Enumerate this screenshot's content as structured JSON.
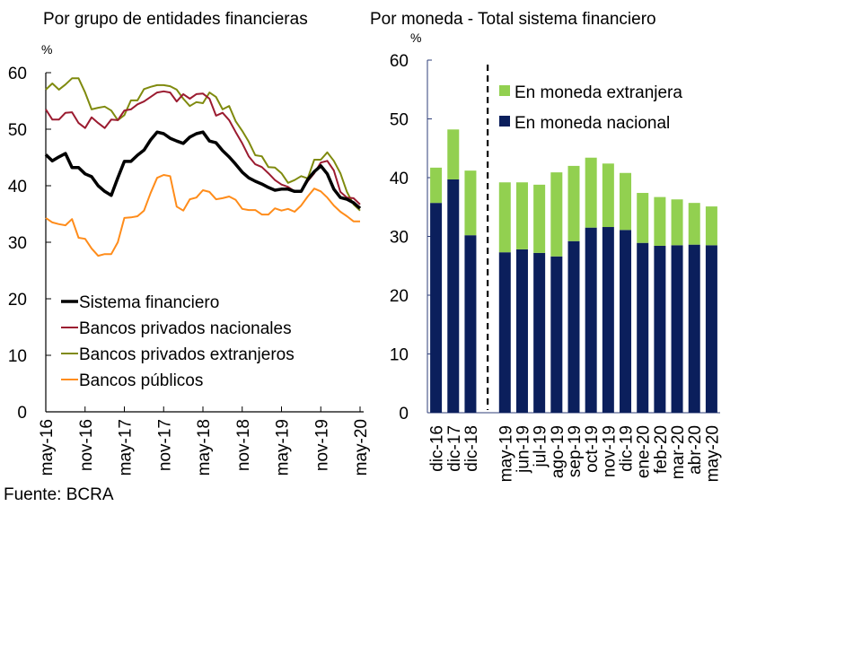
{
  "chart_data": [
    {
      "type": "line",
      "title": "Por grupo de entidades financieras",
      "ylabel": "%",
      "ylim": [
        0,
        60
      ],
      "yticks": [
        0,
        10,
        20,
        30,
        40,
        50,
        60
      ],
      "xtick_labels": [
        "may-16",
        "nov-16",
        "may-17",
        "nov-17",
        "may-18",
        "nov-18",
        "may-19",
        "nov-19",
        "may-20"
      ],
      "x_start": "may-16",
      "x_end": "may-20",
      "frequency": "monthly",
      "legend_position": "bottom-left",
      "series": [
        {
          "name": "Sistema financiero",
          "color": "#000000",
          "values": [
            45.5,
            44.4,
            45.1,
            45.7,
            43.2,
            43.2,
            42.1,
            41.6,
            40.0,
            39.0,
            38.3,
            41.4,
            44.3,
            44.3,
            45.4,
            46.3,
            48.1,
            49.5,
            49.2,
            48.4,
            47.9,
            47.5,
            48.6,
            49.2,
            49.5,
            47.9,
            47.6,
            46.2,
            45.1,
            43.8,
            42.4,
            41.4,
            40.8,
            40.3,
            39.7,
            39.2,
            39.4,
            39.4,
            39.0,
            39.0,
            41.1,
            42.5,
            43.5,
            42.1,
            39.4,
            37.9,
            37.6,
            37.0,
            36.0
          ]
        },
        {
          "name": "Bancos privados nacionales",
          "color": "#9b1b30",
          "values": [
            53.5,
            51.7,
            51.7,
            52.9,
            53.0,
            51.1,
            50.2,
            52.1,
            51.1,
            50.2,
            51.7,
            51.6,
            53.3,
            53.5,
            54.4,
            54.9,
            55.7,
            56.5,
            56.7,
            56.5,
            54.9,
            56.2,
            55.4,
            56.2,
            56.3,
            55.4,
            52.4,
            52.9,
            51.6,
            49.5,
            47.5,
            45.2,
            43.8,
            43.3,
            42.2,
            41.0,
            40.2,
            39.8,
            39.0,
            38.9,
            40.8,
            42.2,
            44.1,
            44.4,
            42.7,
            38.9,
            37.9,
            37.8,
            36.7
          ]
        },
        {
          "name": "Bancos privados extranjeros",
          "color": "#7f8a0e",
          "values": [
            57.0,
            58.1,
            57.0,
            57.9,
            59.0,
            59.0,
            56.5,
            53.5,
            53.8,
            54.0,
            53.3,
            51.6,
            52.5,
            55.1,
            55.1,
            57.1,
            57.5,
            57.8,
            57.8,
            57.6,
            57.0,
            55.4,
            54.1,
            54.8,
            54.6,
            56.5,
            55.7,
            53.5,
            54.1,
            51.4,
            49.7,
            47.8,
            45.4,
            45.2,
            43.3,
            43.2,
            42.2,
            40.5,
            41.0,
            41.7,
            41.3,
            44.6,
            44.6,
            45.9,
            44.4,
            42.2,
            38.9,
            36.7,
            35.6
          ]
        },
        {
          "name": "Bancos públicos",
          "color": "#ff8c1a",
          "values": [
            34.3,
            33.5,
            33.2,
            33.0,
            34.1,
            30.8,
            30.6,
            28.9,
            27.6,
            27.9,
            27.9,
            30.0,
            34.3,
            34.4,
            34.6,
            35.6,
            38.7,
            41.4,
            41.9,
            41.7,
            36.3,
            35.6,
            37.6,
            37.9,
            39.2,
            38.9,
            37.6,
            37.8,
            38.1,
            37.5,
            35.9,
            35.7,
            35.7,
            34.9,
            34.9,
            36.0,
            35.6,
            35.9,
            35.4,
            36.5,
            38.1,
            39.5,
            39.0,
            37.9,
            36.5,
            35.4,
            34.6,
            33.7,
            33.7
          ]
        }
      ]
    },
    {
      "type": "bar",
      "stacked": true,
      "title": "Por moneda - Total sistema financiero",
      "ylabel": "%",
      "ylim": [
        0,
        60
      ],
      "yticks": [
        0,
        10,
        20,
        30,
        40,
        50,
        60
      ],
      "legend_position": "top-right",
      "categories": [
        "dic-16",
        "dic-17",
        "dic-18",
        "",
        "may-19",
        "jun-19",
        "jul-19",
        "ago-19",
        "sep-19",
        "oct-19",
        "nov-19",
        "dic-19",
        "ene-20",
        "feb-20",
        "mar-20",
        "abr-20",
        "may-20"
      ],
      "separator_after": "dic-18",
      "series": [
        {
          "name": "En moneda nacional",
          "color": "#0b1f5c",
          "values": [
            35.7,
            39.7,
            30.2,
            null,
            27.3,
            27.8,
            27.2,
            26.6,
            29.2,
            31.5,
            31.6,
            31.1,
            28.9,
            28.4,
            28.5,
            28.6,
            28.5
          ]
        },
        {
          "name": "En moneda extranjera",
          "color": "#92d050",
          "values": [
            6.0,
            8.5,
            11.0,
            null,
            11.9,
            11.4,
            11.6,
            14.3,
            12.8,
            11.9,
            10.8,
            9.7,
            8.5,
            8.3,
            7.8,
            7.1,
            6.6
          ]
        }
      ],
      "totals": [
        41.7,
        48.2,
        41.2,
        null,
        39.2,
        39.2,
        38.8,
        40.9,
        42.0,
        43.4,
        42.4,
        40.8,
        37.4,
        36.7,
        36.3,
        35.7,
        35.1
      ]
    }
  ],
  "labels": {
    "left_title": "Por grupo de entidades financieras",
    "right_title": "Por moneda - Total sistema financiero",
    "left_unit": "%",
    "right_unit": "%",
    "source": "Fuente: BCRA"
  }
}
